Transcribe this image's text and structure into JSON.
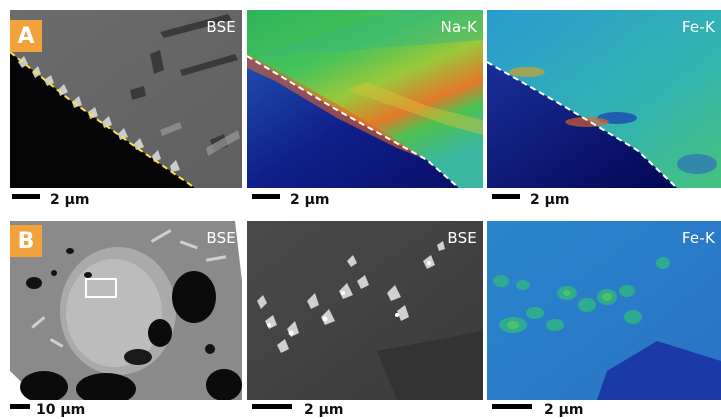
{
  "figure": {
    "row_a": {
      "badge": "A",
      "panels": [
        {
          "label": "BSE",
          "scale": "2 µm"
        },
        {
          "label": "Na-K",
          "scale": "2 µm"
        },
        {
          "label": "Fe-K",
          "scale": "2 µm"
        }
      ]
    },
    "row_b": {
      "badge": "B",
      "panels": [
        {
          "label": "BSE",
          "scale": "10 µm"
        },
        {
          "label": "BSE",
          "scale": "2 µm"
        },
        {
          "label": "Fe-K",
          "scale": "2 µm"
        }
      ]
    }
  }
}
